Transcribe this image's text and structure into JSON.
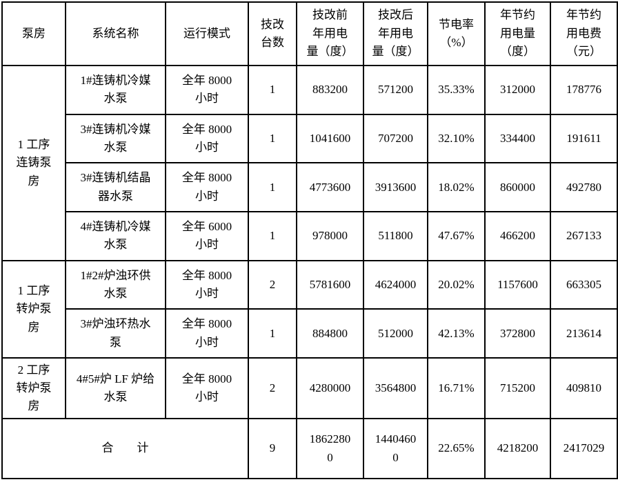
{
  "table": {
    "headers": [
      "泵房",
      "系统名称",
      "运行模式",
      "技改\n台数",
      "技改前\n年用电\n量（度）",
      "技改后\n年用电\n量（度）",
      "节电率\n（%）",
      "年节约\n用电量\n（度）",
      "年节约\n用电费\n（元）"
    ],
    "groups": [
      {
        "label": "1 工序\n连铸泵\n房"
      },
      {
        "label": "1 工序\n转炉泵\n房"
      },
      {
        "label": "2 工序\n转炉泵\n房"
      }
    ],
    "rows": [
      {
        "system": "1#连铸机冷媒\n水泵",
        "mode": "全年 8000\n小时",
        "units": "1",
        "before_kwh": "883200",
        "after_kwh": "571200",
        "saving_rate": "35.33%",
        "saved_kwh": "312000",
        "saved_yuan": "178776"
      },
      {
        "system": "3#连铸机冷媒\n水泵",
        "mode": "全年 8000\n小时",
        "units": "1",
        "before_kwh": "1041600",
        "after_kwh": "707200",
        "saving_rate": "32.10%",
        "saved_kwh": "334400",
        "saved_yuan": "191611"
      },
      {
        "system": "3#连铸机结晶\n器水泵",
        "mode": "全年 8000\n小时",
        "units": "1",
        "before_kwh": "4773600",
        "after_kwh": "3913600",
        "saving_rate": "18.02%",
        "saved_kwh": "860000",
        "saved_yuan": "492780"
      },
      {
        "system": "4#连铸机冷媒\n水泵",
        "mode": "全年 6000\n小时",
        "units": "1",
        "before_kwh": "978000",
        "after_kwh": "511800",
        "saving_rate": "47.67%",
        "saved_kwh": "466200",
        "saved_yuan": "267133"
      },
      {
        "system": "1#2#炉浊环供\n水泵",
        "mode": "全年 8000\n小时",
        "units": "2",
        "before_kwh": "5781600",
        "after_kwh": "4624000",
        "saving_rate": "20.02%",
        "saved_kwh": "1157600",
        "saved_yuan": "663305"
      },
      {
        "system": "3#炉浊环热水\n泵",
        "mode": "全年 8000\n小时",
        "units": "1",
        "before_kwh": "884800",
        "after_kwh": "512000",
        "saving_rate": "42.13%",
        "saved_kwh": "372800",
        "saved_yuan": "213614"
      },
      {
        "system": "4#5#炉 LF 炉给\n水泵",
        "mode": "全年 8000\n小时",
        "units": "2",
        "before_kwh": "4280000",
        "after_kwh": "3564800",
        "saving_rate": "16.71%",
        "saved_kwh": "715200",
        "saved_yuan": "409810"
      }
    ],
    "total": {
      "label": "合　　计",
      "units": "9",
      "before_kwh": "1862280\n0",
      "after_kwh": "1440460\n0",
      "saving_rate": "22.65%",
      "saved_kwh": "4218200",
      "saved_yuan": "2417029"
    },
    "colors": {
      "border": "#000000",
      "background": "#ffffff",
      "text": "#000000"
    }
  }
}
